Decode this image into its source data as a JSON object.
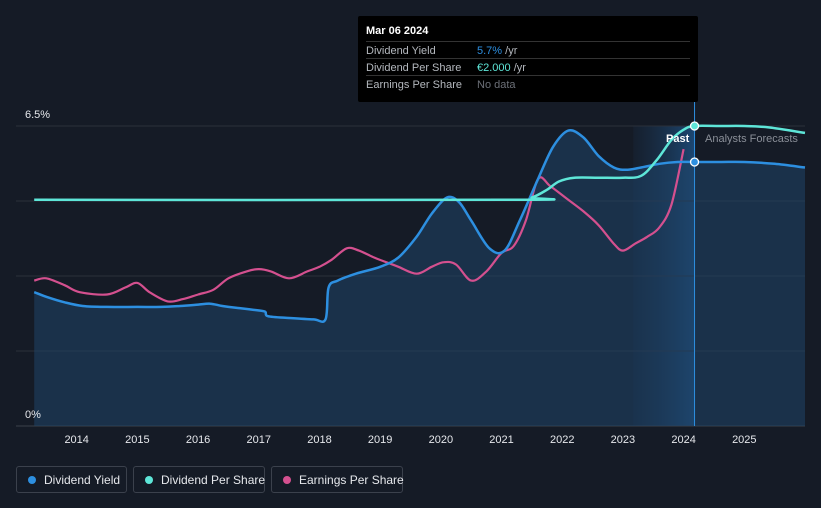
{
  "tooltip": {
    "date": "Mar 06 2024",
    "rows": [
      {
        "label": "Dividend Yield",
        "value": "5.7%",
        "suffix": " /yr"
      },
      {
        "label": "Dividend Per Share",
        "value": "€2.000",
        "suffix": " /yr"
      },
      {
        "label": "Earnings Per Share",
        "value": "No data",
        "suffix": ""
      }
    ]
  },
  "labels": {
    "past": "Past",
    "forecast": "Analysts Forecasts"
  },
  "legend": [
    {
      "label": "Dividend Yield",
      "color": "#2d8fe0"
    },
    {
      "label": "Dividend Per Share",
      "color": "#5ee6d8"
    },
    {
      "label": "Earnings Per Share",
      "color": "#d4508f"
    }
  ],
  "chart_data": {
    "type": "line",
    "title": "",
    "y_tick_labels": [
      "6.5%",
      "0%"
    ],
    "ylim": [
      0,
      6.5
    ],
    "xlim": [
      2013.0,
      2026.0
    ],
    "x_tick_labels": [
      "2014",
      "2015",
      "2016",
      "2017",
      "2018",
      "2019",
      "2020",
      "2021",
      "2022",
      "2023",
      "2024",
      "2025"
    ],
    "past_boundary": 2024.18,
    "forecast_region_start": 2023.17,
    "series": [
      {
        "name": "Dividend Yield",
        "color": "#2d8fe0",
        "unit": "%",
        "area": true,
        "x": [
          2013.3,
          2013.5,
          2013.8,
          2014.1,
          2014.5,
          2015.0,
          2015.4,
          2015.7,
          2016.0,
          2016.2,
          2016.4,
          2016.7,
          2016.9,
          2017.1,
          2017.15,
          2017.5,
          2017.9,
          2018.1,
          2018.15,
          2018.3,
          2018.6,
          2019.0,
          2019.3,
          2019.6,
          2019.85,
          2020.1,
          2020.3,
          2020.5,
          2020.8,
          2021.05,
          2021.3,
          2021.6,
          2021.85,
          2022.1,
          2022.35,
          2022.6,
          2022.85,
          2023.05,
          2023.3,
          2023.6,
          2023.9,
          2024.18,
          2024.6,
          2025.0,
          2025.5,
          2026.0
        ],
        "y": [
          2.9,
          2.8,
          2.68,
          2.6,
          2.58,
          2.58,
          2.58,
          2.6,
          2.63,
          2.65,
          2.6,
          2.55,
          2.52,
          2.48,
          2.38,
          2.34,
          2.31,
          2.31,
          3.0,
          3.15,
          3.3,
          3.45,
          3.65,
          4.1,
          4.6,
          4.95,
          4.85,
          4.45,
          3.85,
          3.8,
          4.45,
          5.35,
          6.05,
          6.4,
          6.25,
          5.85,
          5.6,
          5.55,
          5.6,
          5.68,
          5.72,
          5.72,
          5.72,
          5.72,
          5.68,
          5.6
        ]
      },
      {
        "name": "Dividend Per Share",
        "color": "#5ee6d8",
        "unit": "EUR",
        "x": [
          2013.3,
          2021.2,
          2021.5,
          2021.75,
          2021.95,
          2022.2,
          2022.6,
          2023.0,
          2023.3,
          2023.55,
          2023.8,
          2024.0,
          2024.18,
          2024.6,
          2025.0,
          2025.4,
          2026.0
        ],
        "y": [
          4.9,
          4.9,
          4.95,
          5.12,
          5.3,
          5.38,
          5.38,
          5.38,
          5.42,
          5.75,
          6.2,
          6.42,
          6.5,
          6.5,
          6.5,
          6.47,
          6.35
        ]
      },
      {
        "name": "Earnings Per Share",
        "color": "#d4508f",
        "unit": "EUR",
        "x": [
          2013.3,
          2013.5,
          2013.8,
          2014.05,
          2014.5,
          2014.8,
          2015.0,
          2015.2,
          2015.5,
          2015.75,
          2016.0,
          2016.25,
          2016.5,
          2016.8,
          2017.0,
          2017.2,
          2017.5,
          2017.8,
          2018.0,
          2018.2,
          2018.45,
          2018.65,
          2018.9,
          2019.1,
          2019.3,
          2019.6,
          2019.85,
          2020.05,
          2020.25,
          2020.5,
          2020.75,
          2021.0,
          2021.2,
          2021.4,
          2021.6,
          2021.8,
          2022.05,
          2022.35,
          2022.6,
          2022.85,
          2023.0,
          2023.2,
          2023.4,
          2023.6,
          2023.8,
          2024.0
        ],
        "y": [
          3.15,
          3.2,
          3.05,
          2.9,
          2.85,
          3.0,
          3.1,
          2.9,
          2.7,
          2.75,
          2.85,
          2.95,
          3.2,
          3.35,
          3.4,
          3.35,
          3.2,
          3.35,
          3.45,
          3.6,
          3.85,
          3.8,
          3.65,
          3.55,
          3.45,
          3.3,
          3.45,
          3.55,
          3.5,
          3.15,
          3.35,
          3.75,
          3.9,
          4.45,
          5.35,
          5.2,
          4.95,
          4.65,
          4.35,
          3.95,
          3.8,
          3.95,
          4.1,
          4.3,
          4.8,
          6.0
        ]
      }
    ],
    "markers": [
      {
        "series": "Dividend Per Share",
        "x": 2024.18,
        "y": 6.5
      },
      {
        "series": "Dividend Yield",
        "x": 2024.18,
        "y": 5.72
      }
    ]
  }
}
